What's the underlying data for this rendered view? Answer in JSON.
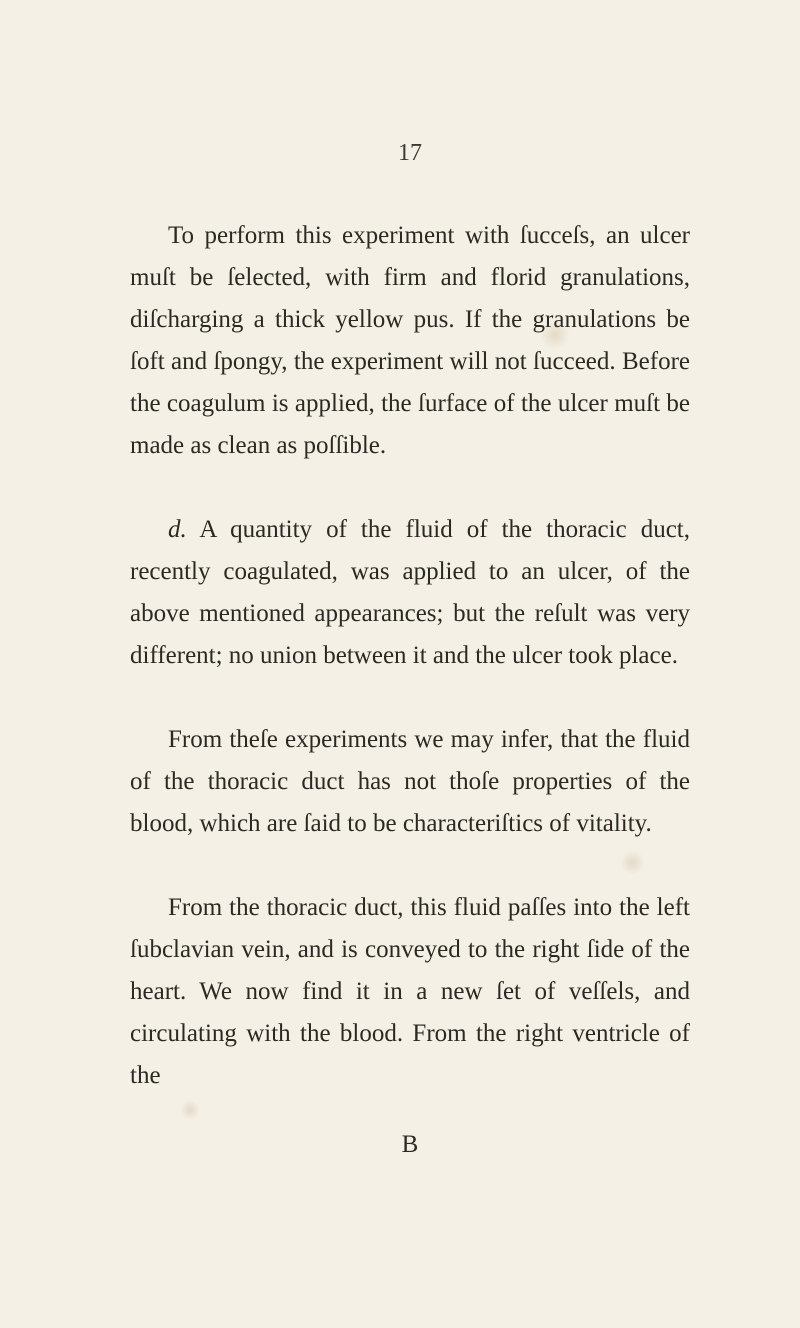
{
  "page_number": "17",
  "paragraphs": [
    "To perform this experiment with ſucceſs, an ulcer muſt be ſelected, with firm and florid granulations, diſcharging a thick yellow pus. If the granulations be ſoft and ſpongy, the experiment will not ſucceed. Before the coagulum is applied, the ſurface of the ulcer muſt be made as clean as poſſible.",
    "A quantity of the fluid of the thoracic duct, recently coagulated, was applied to an ulcer, of the above mentioned appearances; but the reſult was very different; no union between it and the ulcer took place.",
    "From theſe experiments we may infer, that the fluid of the thoracic duct has not thoſe properties of the blood, which are ſaid to be characteriſtics of vitality.",
    "From the thoracic duct, this fluid paſſes into the left ſubclavian vein, and is conveyed to the right ſide of the heart. We now find it in a new ſet of veſſels, and circulating with the blood. From the right ventricle of the"
  ],
  "item_label": "d.",
  "signature": "B",
  "colors": {
    "background": "#f4f0e6",
    "text": "#2a2a22"
  },
  "typography": {
    "body_fontsize": 25,
    "line_height": 1.68,
    "page_number_fontsize": 24
  }
}
